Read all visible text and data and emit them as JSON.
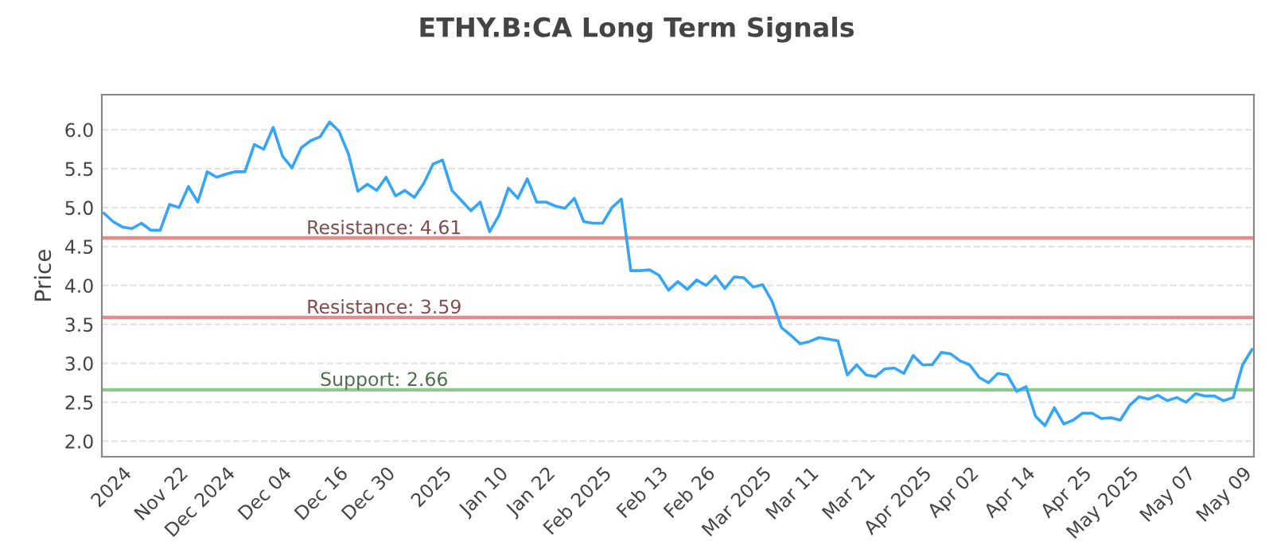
{
  "chart_data": {
    "type": "line",
    "title": "ETHY.B:CA Long Term Signals",
    "ylabel": "Price",
    "categories": [
      null,
      null,
      "2024",
      null,
      null,
      null,
      null,
      null,
      "Nov 22",
      null,
      null,
      null,
      null,
      "Dec 2024",
      null,
      null,
      null,
      null,
      null,
      "Dec 04",
      null,
      null,
      null,
      null,
      null,
      "Dec 16",
      null,
      null,
      null,
      null,
      "Dec 30",
      null,
      null,
      null,
      null,
      null,
      "2025",
      null,
      null,
      null,
      null,
      null,
      "Jan 10",
      null,
      null,
      null,
      null,
      "Jan 22",
      null,
      null,
      null,
      null,
      null,
      "Feb 2025",
      null,
      null,
      null,
      null,
      null,
      "Feb 13",
      null,
      null,
      null,
      null,
      "Feb 26",
      null,
      null,
      null,
      null,
      null,
      "Mar 2025",
      null,
      null,
      null,
      null,
      "Mar 11",
      null,
      null,
      null,
      null,
      null,
      "Mar 21",
      null,
      null,
      null,
      null,
      null,
      "Apr 2025",
      null,
      null,
      null,
      null,
      "Apr 02",
      null,
      null,
      null,
      null,
      null,
      "Apr 14",
      null,
      null,
      null,
      null,
      null,
      "Apr 25",
      null,
      null,
      null,
      null,
      "May 2025",
      null,
      null,
      null,
      null,
      null,
      "May 07",
      null,
      null,
      null,
      null,
      null,
      "May 09",
      null
    ],
    "series": [
      {
        "color": "#35a6f5",
        "values": [
          4.93,
          4.82,
          4.75,
          4.73,
          4.8,
          4.71,
          4.71,
          5.04,
          5.0,
          5.27,
          5.07,
          5.46,
          5.39,
          5.43,
          5.46,
          5.46,
          5.81,
          5.75,
          6.03,
          5.66,
          5.51,
          5.77,
          5.86,
          5.91,
          6.1,
          5.98,
          5.69,
          5.21,
          5.3,
          5.22,
          5.39,
          5.15,
          5.22,
          5.13,
          5.31,
          5.56,
          5.61,
          5.22,
          5.09,
          4.96,
          5.07,
          4.69,
          4.9,
          5.25,
          5.12,
          5.37,
          5.07,
          5.07,
          5.02,
          4.99,
          5.12,
          4.82,
          4.8,
          4.8,
          5.0,
          5.11,
          4.19,
          4.19,
          4.2,
          4.13,
          3.94,
          4.05,
          3.95,
          4.07,
          4.0,
          4.12,
          3.96,
          4.11,
          4.1,
          3.98,
          4.01,
          3.8,
          3.46,
          3.36,
          3.25,
          3.28,
          3.33,
          3.31,
          3.29,
          2.85,
          2.98,
          2.85,
          2.83,
          2.93,
          2.94,
          2.87,
          3.1,
          2.98,
          2.98,
          3.14,
          3.12,
          3.03,
          2.98,
          2.82,
          2.75,
          2.87,
          2.85,
          2.64,
          2.7,
          2.32,
          2.2,
          2.43,
          2.22,
          2.27,
          2.36,
          2.36,
          2.29,
          2.3,
          2.27,
          2.46,
          2.57,
          2.54,
          2.59,
          2.52,
          2.56,
          2.5,
          2.61,
          2.58,
          2.58,
          2.52,
          2.56,
          2.98,
          3.18
        ]
      }
    ],
    "ylim": [
      1.8,
      6.45
    ],
    "yticks": [
      {
        "value": 2,
        "label": "2.0"
      },
      {
        "value": 2.5,
        "label": "2.5"
      },
      {
        "value": 3,
        "label": "3.0"
      },
      {
        "value": 3.5,
        "label": "3.5"
      },
      {
        "value": 4,
        "label": "4.0"
      },
      {
        "value": 4.5,
        "label": "4.5"
      },
      {
        "value": 5,
        "label": "5.0"
      },
      {
        "value": 5.5,
        "label": "5.5"
      },
      {
        "value": 6,
        "label": "6.0"
      }
    ],
    "ref_lines": [
      {
        "axis": "y",
        "value": 4.61,
        "label": "Resistance: 4.61",
        "color": "#e88a8a"
      },
      {
        "axis": "y",
        "value": 3.59,
        "label": "Resistance: 3.59",
        "color": "#e88a8a"
      },
      {
        "axis": "y",
        "value": 2.66,
        "label": "Support: 2.66",
        "color": "#8cc98c"
      }
    ],
    "grid": "y",
    "legend": false,
    "marker": "none",
    "line_style": "solid"
  }
}
